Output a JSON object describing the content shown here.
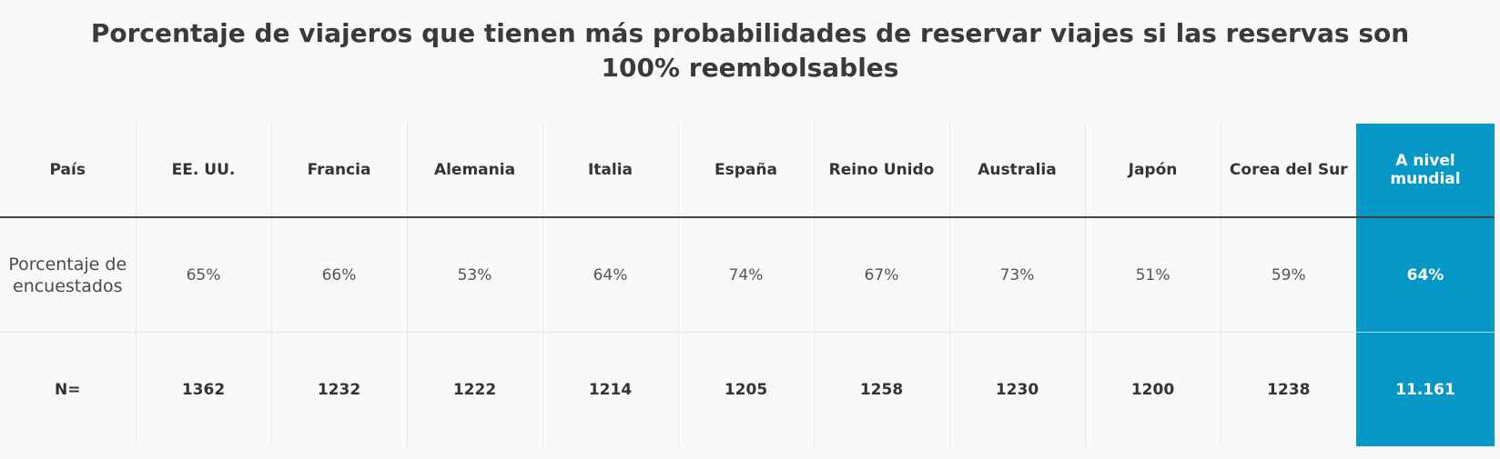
{
  "chart_data": {
    "type": "table",
    "title": "Porcentaje de viajeros que tienen más probabilidades de reservar viajes si las reservas son 100% reembolsables",
    "header_label": "País",
    "columns": [
      "EE. UU.",
      "Francia",
      "Alemania",
      "Italia",
      "España",
      "Reino Unido",
      "Australia",
      "Japón",
      "Corea del Sur",
      "A nivel mundial"
    ],
    "rows": [
      {
        "label": "Porcentaje de encuestados",
        "values": [
          "65%",
          "66%",
          "53%",
          "64%",
          "74%",
          "67%",
          "73%",
          "51%",
          "59%",
          "64%"
        ]
      },
      {
        "label": "N=",
        "values": [
          "1362",
          "1232",
          "1222",
          "1214",
          "1205",
          "1258",
          "1230",
          "1200",
          "1238",
          "11.161"
        ]
      }
    ],
    "highlight_column": "A nivel mundial",
    "highlight_color": "#0597c5"
  }
}
